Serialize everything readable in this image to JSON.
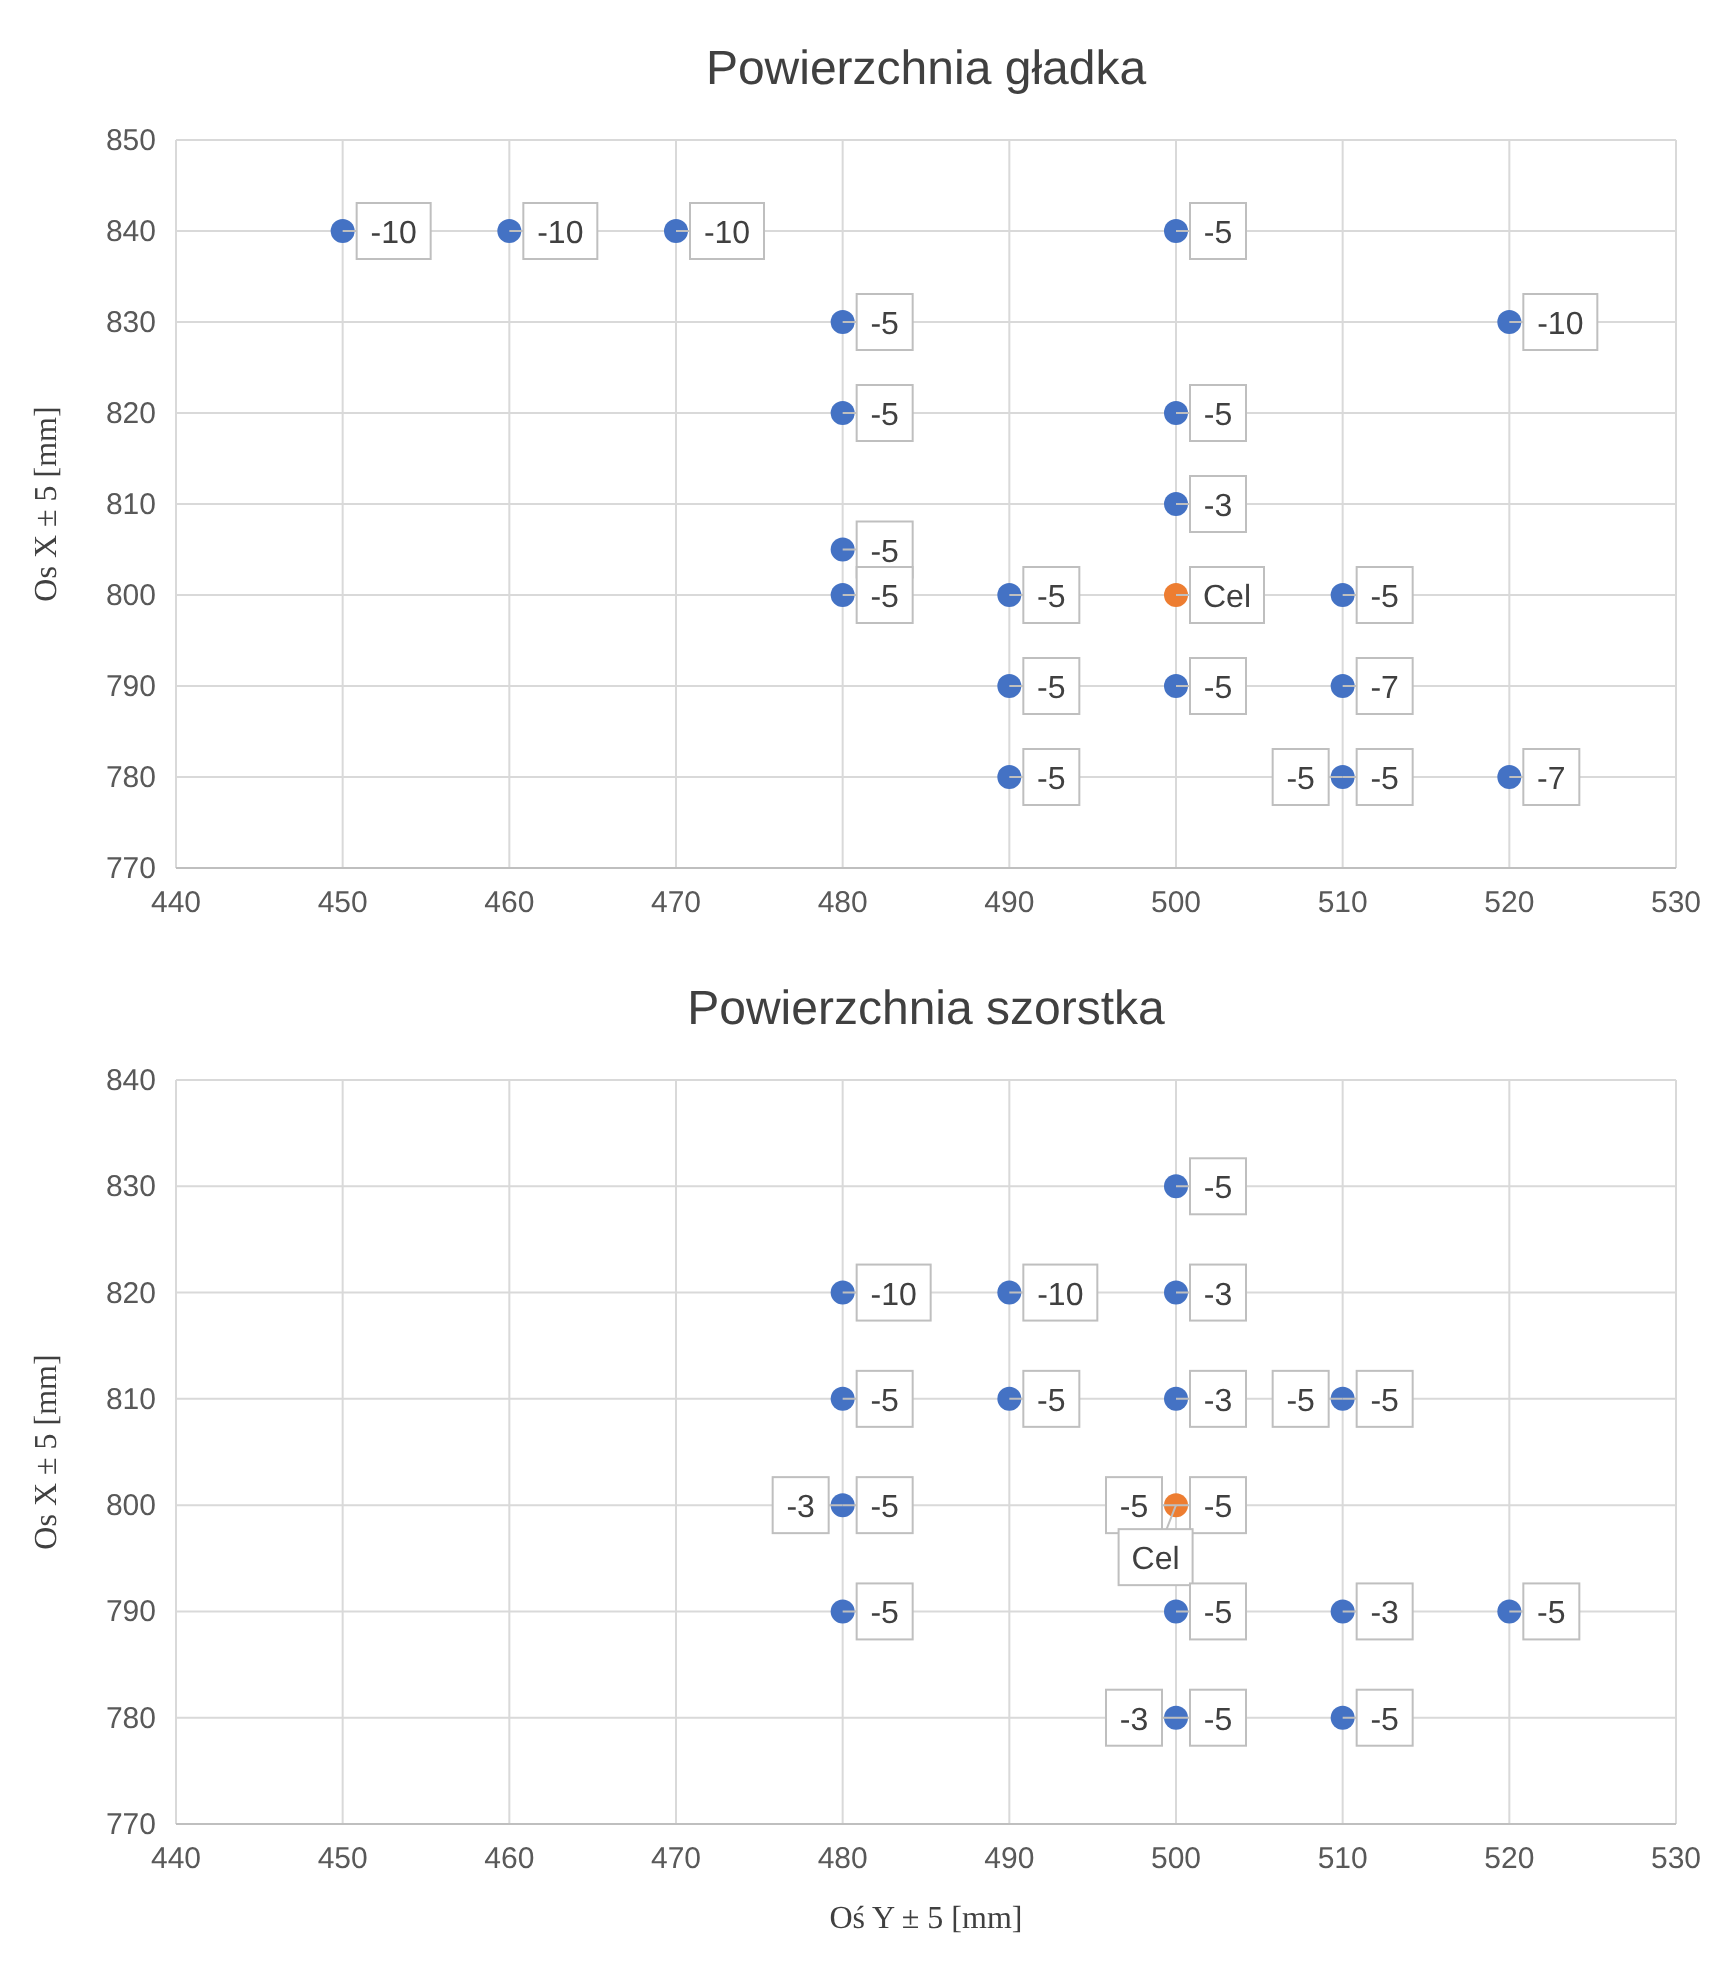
{
  "chart_data": [
    {
      "type": "scatter",
      "title": "Powierzchnia gładka",
      "ylabel": "Os X ± 5 [mm]",
      "xlim": [
        440,
        530
      ],
      "xticks": [
        440,
        450,
        460,
        470,
        480,
        490,
        500,
        510,
        520,
        530
      ],
      "ylim": [
        770,
        850
      ],
      "yticks": [
        770,
        780,
        790,
        800,
        810,
        820,
        830,
        840,
        850
      ],
      "grid": true,
      "marker": "circle",
      "series": [
        {
          "color": "#4472c4",
          "x": [
            450,
            460,
            470,
            500,
            520,
            480,
            480,
            500,
            500,
            480,
            480,
            490,
            510,
            490,
            500,
            510,
            490,
            510,
            520
          ],
          "values": [
            840,
            840,
            840,
            840,
            830,
            830,
            820,
            820,
            810,
            805,
            800,
            800,
            800,
            790,
            790,
            790,
            780,
            780,
            780
          ]
        },
        {
          "color": "#ed7d31",
          "x": [
            500
          ],
          "values": [
            800
          ]
        }
      ],
      "annotations": [
        {
          "text": "-10",
          "x": 450,
          "y": 840
        },
        {
          "text": "-10",
          "x": 460,
          "y": 840
        },
        {
          "text": "-10",
          "x": 470,
          "y": 840
        },
        {
          "text": "-5",
          "x": 500,
          "y": 840
        },
        {
          "text": "-10",
          "x": 520,
          "y": 830
        },
        {
          "text": "-5",
          "x": 480,
          "y": 830
        },
        {
          "text": "-5",
          "x": 480,
          "y": 820
        },
        {
          "text": "-5",
          "x": 500,
          "y": 820
        },
        {
          "text": "-3",
          "x": 500,
          "y": 810
        },
        {
          "text": "-5",
          "x": 480,
          "y": 805
        },
        {
          "text": "-5",
          "x": 480,
          "y": 800
        },
        {
          "text": "-5",
          "x": 490,
          "y": 800
        },
        {
          "text": "Cel",
          "x": 500,
          "y": 800
        },
        {
          "text": "-5",
          "x": 510,
          "y": 800
        },
        {
          "text": "-5",
          "x": 490,
          "y": 790
        },
        {
          "text": "-5",
          "x": 500,
          "y": 790
        },
        {
          "text": "-7",
          "x": 510,
          "y": 790
        },
        {
          "text": "-5",
          "x": 490,
          "y": 780
        },
        {
          "text": "-5",
          "x": 510,
          "y": 780
        },
        {
          "text": "-5",
          "x": 510,
          "y": 780
        },
        {
          "text": "-7",
          "x": 520,
          "y": 780
        }
      ]
    },
    {
      "type": "scatter",
      "title": "Powierzchnia szorstka",
      "xlabel": "Oś Y ± 5 [mm]",
      "ylabel": "Os X ± 5 [mm]",
      "xlim": [
        440,
        530
      ],
      "xticks": [
        440,
        450,
        460,
        470,
        480,
        490,
        500,
        510,
        520,
        530
      ],
      "ylim": [
        770,
        840
      ],
      "yticks": [
        770,
        780,
        790,
        800,
        810,
        820,
        830,
        840
      ],
      "grid": true,
      "marker": "circle",
      "series": [
        {
          "color": "#4472c4",
          "x": [
            500,
            480,
            490,
            500,
            480,
            490,
            500,
            510,
            480,
            480,
            500,
            510,
            520,
            500,
            510
          ],
          "values": [
            830,
            820,
            820,
            820,
            810,
            810,
            810,
            810,
            800,
            790,
            790,
            790,
            790,
            780,
            780
          ]
        },
        {
          "color": "#ed7d31",
          "x": [
            500
          ],
          "values": [
            800
          ]
        }
      ],
      "annotations": [
        {
          "text": "-5",
          "x": 500,
          "y": 830
        },
        {
          "text": "-10",
          "x": 480,
          "y": 820
        },
        {
          "text": "-10",
          "x": 490,
          "y": 820
        },
        {
          "text": "-3",
          "x": 500,
          "y": 820
        },
        {
          "text": "-5",
          "x": 480,
          "y": 810
        },
        {
          "text": "-5",
          "x": 490,
          "y": 810
        },
        {
          "text": "-3",
          "x": 500,
          "y": 810
        },
        {
          "text": "-5",
          "x": 510,
          "y": 810
        },
        {
          "text": "-5",
          "x": 510,
          "y": 810
        },
        {
          "text": "-5",
          "x": 480,
          "y": 800
        },
        {
          "text": "-3",
          "x": 480,
          "y": 800
        },
        {
          "text": "-5",
          "x": 500,
          "y": 800
        },
        {
          "text": "-5",
          "x": 500,
          "y": 800
        },
        {
          "text": "Cel",
          "x": 500,
          "y": 800
        },
        {
          "text": "-5",
          "x": 480,
          "y": 790
        },
        {
          "text": "-5",
          "x": 500,
          "y": 790
        },
        {
          "text": "-3",
          "x": 510,
          "y": 790
        },
        {
          "text": "-5",
          "x": 520,
          "y": 790
        },
        {
          "text": "-5",
          "x": 500,
          "y": 780
        },
        {
          "text": "-3",
          "x": 500,
          "y": 780
        },
        {
          "text": "-5",
          "x": 510,
          "y": 780
        }
      ]
    }
  ]
}
